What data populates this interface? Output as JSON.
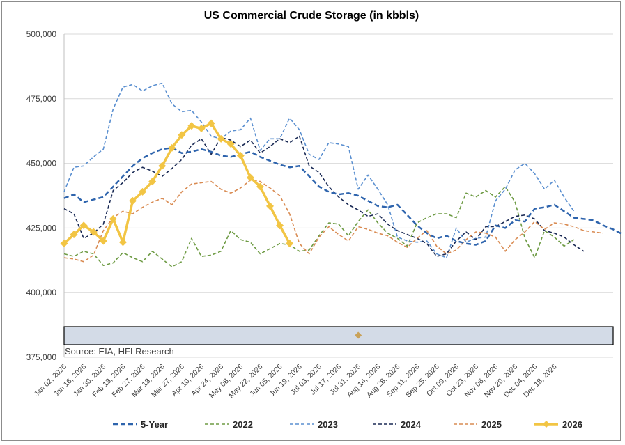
{
  "chart_data": {
    "type": "line",
    "title": "US Commercial Crude Storage (in kbbls)",
    "source_note": "Source: EIA, HFI Research",
    "ylim": [
      375000,
      500000
    ],
    "yticks": [
      375000,
      400000,
      425000,
      450000,
      475000,
      500000
    ],
    "ytick_labels": [
      "375,000",
      "400,000",
      "425,000",
      "450,000",
      "475,000",
      "500,000"
    ],
    "grid": true,
    "legend_position": "bottom",
    "xtick_labels": [
      "Jan 02, 2026",
      "Jan 16, 2026",
      "Jan 30, 2026",
      "Feb 13, 2026",
      "Feb 27, 2026",
      "Mar 13, 2026",
      "Mar 27, 2026",
      "Apr 10, 2026",
      "Apr 24, 2026",
      "May 08, 2026",
      "May 22, 2026",
      "Jun 05, 2026",
      "Jun 19, 2026",
      "Jul 03, 2026",
      "Jul 17, 2026",
      "Jul 31, 2026",
      "Aug 14, 2026",
      "Aug 28, 2026",
      "Sep 11, 2026",
      "Sep 25, 2026",
      "Oct 09, 2026",
      "Oct 23, 2026",
      "Nov 06, 2026",
      "Nov 20, 2026",
      "Dec 04, 2026",
      "Dec 18, 2026"
    ],
    "series": [
      {
        "name": "5-Year",
        "color": "#2e64ad",
        "dash": "dashed-thick",
        "marker": "none",
        "values": [
          436500,
          438000,
          435000,
          436000,
          437000,
          441000,
          445000,
          449000,
          452000,
          454000,
          455500,
          456000,
          454000,
          454500,
          455500,
          454500,
          453000,
          452500,
          453500,
          454500,
          452500,
          451000,
          449500,
          448500,
          449000,
          445000,
          441000,
          439000,
          438000,
          438500,
          437500,
          435500,
          433500,
          433000,
          434000,
          430000,
          426000,
          423000,
          421000,
          422000,
          420000,
          419000,
          418500,
          420000,
          426000,
          425000,
          428000,
          427500,
          432500,
          433000,
          434000,
          431500,
          429000,
          428500,
          428000,
          426000,
          424500,
          422500
        ]
      },
      {
        "name": "2022",
        "color": "#6e9b44",
        "dash": "dashed",
        "marker": "none",
        "values": [
          415000,
          414000,
          416000,
          415000,
          410500,
          411500,
          415500,
          413500,
          412000,
          416000,
          413000,
          410000,
          412000,
          421000,
          414000,
          414500,
          416000,
          424000,
          420500,
          419500,
          415000,
          417000,
          419000,
          418500,
          416000,
          416500,
          422000,
          427000,
          426500,
          422000,
          427500,
          432000,
          427000,
          423000,
          421000,
          418000,
          427000,
          429000,
          430500,
          430500,
          429000,
          438500,
          437000,
          439500,
          437000,
          441000,
          435000,
          421000,
          413500,
          424000,
          421500,
          418000,
          420500
        ]
      },
      {
        "name": "2023",
        "color": "#5a8fd0",
        "dash": "dashed",
        "marker": "none",
        "values": [
          439000,
          448500,
          449000,
          452500,
          455500,
          471000,
          479500,
          480500,
          478000,
          480000,
          481000,
          473000,
          470000,
          470500,
          466000,
          460500,
          459500,
          462500,
          463000,
          467500,
          455000,
          459500,
          459500,
          467500,
          463000,
          453500,
          451500,
          458000,
          457500,
          456500,
          440000,
          445500,
          440000,
          434000,
          421500,
          420000,
          419500,
          420000,
          415000,
          413500,
          425000,
          419500,
          421000,
          421500,
          435500,
          440000,
          447500,
          450000,
          446000,
          440000,
          443500,
          437000,
          431500
        ]
      },
      {
        "name": "2024",
        "color": "#1a2a55",
        "dash": "dashed",
        "marker": "none",
        "values": [
          432500,
          430500,
          421000,
          423000,
          426500,
          439500,
          442500,
          446500,
          448500,
          447000,
          445000,
          448000,
          451500,
          457000,
          459500,
          453500,
          460000,
          459000,
          456500,
          459000,
          454000,
          456500,
          459500,
          458000,
          460500,
          449000,
          446500,
          441000,
          437000,
          434000,
          432000,
          429500,
          430500,
          426500,
          424000,
          422500,
          421000,
          419000,
          414000,
          415000,
          420000,
          423500,
          420500,
          425500,
          425500,
          427500,
          429500,
          430000,
          428500,
          424000,
          423000,
          421500,
          418500,
          416000
        ]
      },
      {
        "name": "2025",
        "color": "#d98b52",
        "dash": "dashed",
        "marker": "none",
        "values": [
          413500,
          413000,
          412000,
          414500,
          424000,
          429000,
          431500,
          430500,
          433000,
          435000,
          436500,
          434000,
          439000,
          442000,
          442500,
          443000,
          440000,
          438500,
          440500,
          443500,
          443000,
          440500,
          437500,
          430500,
          419000,
          415000,
          421500,
          425500,
          422500,
          420000,
          425500,
          424500,
          423000,
          422000,
          419500,
          417500,
          421000,
          424000,
          418000,
          415000,
          416500,
          420500,
          423500,
          423000,
          421500,
          416000,
          420500,
          423500,
          427500,
          424500,
          427000,
          426500,
          425500,
          424000,
          423500,
          423000
        ]
      },
      {
        "name": "2026",
        "color": "#f2c544",
        "dash": "solid-thick",
        "marker": "diamond",
        "values": [
          419000,
          422500,
          426000,
          423500,
          420000,
          428500,
          419500,
          435500,
          439000,
          443000,
          449000,
          456000,
          461000,
          464500,
          463500,
          465500,
          459500,
          457500,
          453000,
          444500,
          441000,
          433500,
          426000,
          419000
        ]
      }
    ],
    "extra_marker": {
      "color": "#c9a259",
      "value": 383500,
      "x_index": 30
    }
  }
}
